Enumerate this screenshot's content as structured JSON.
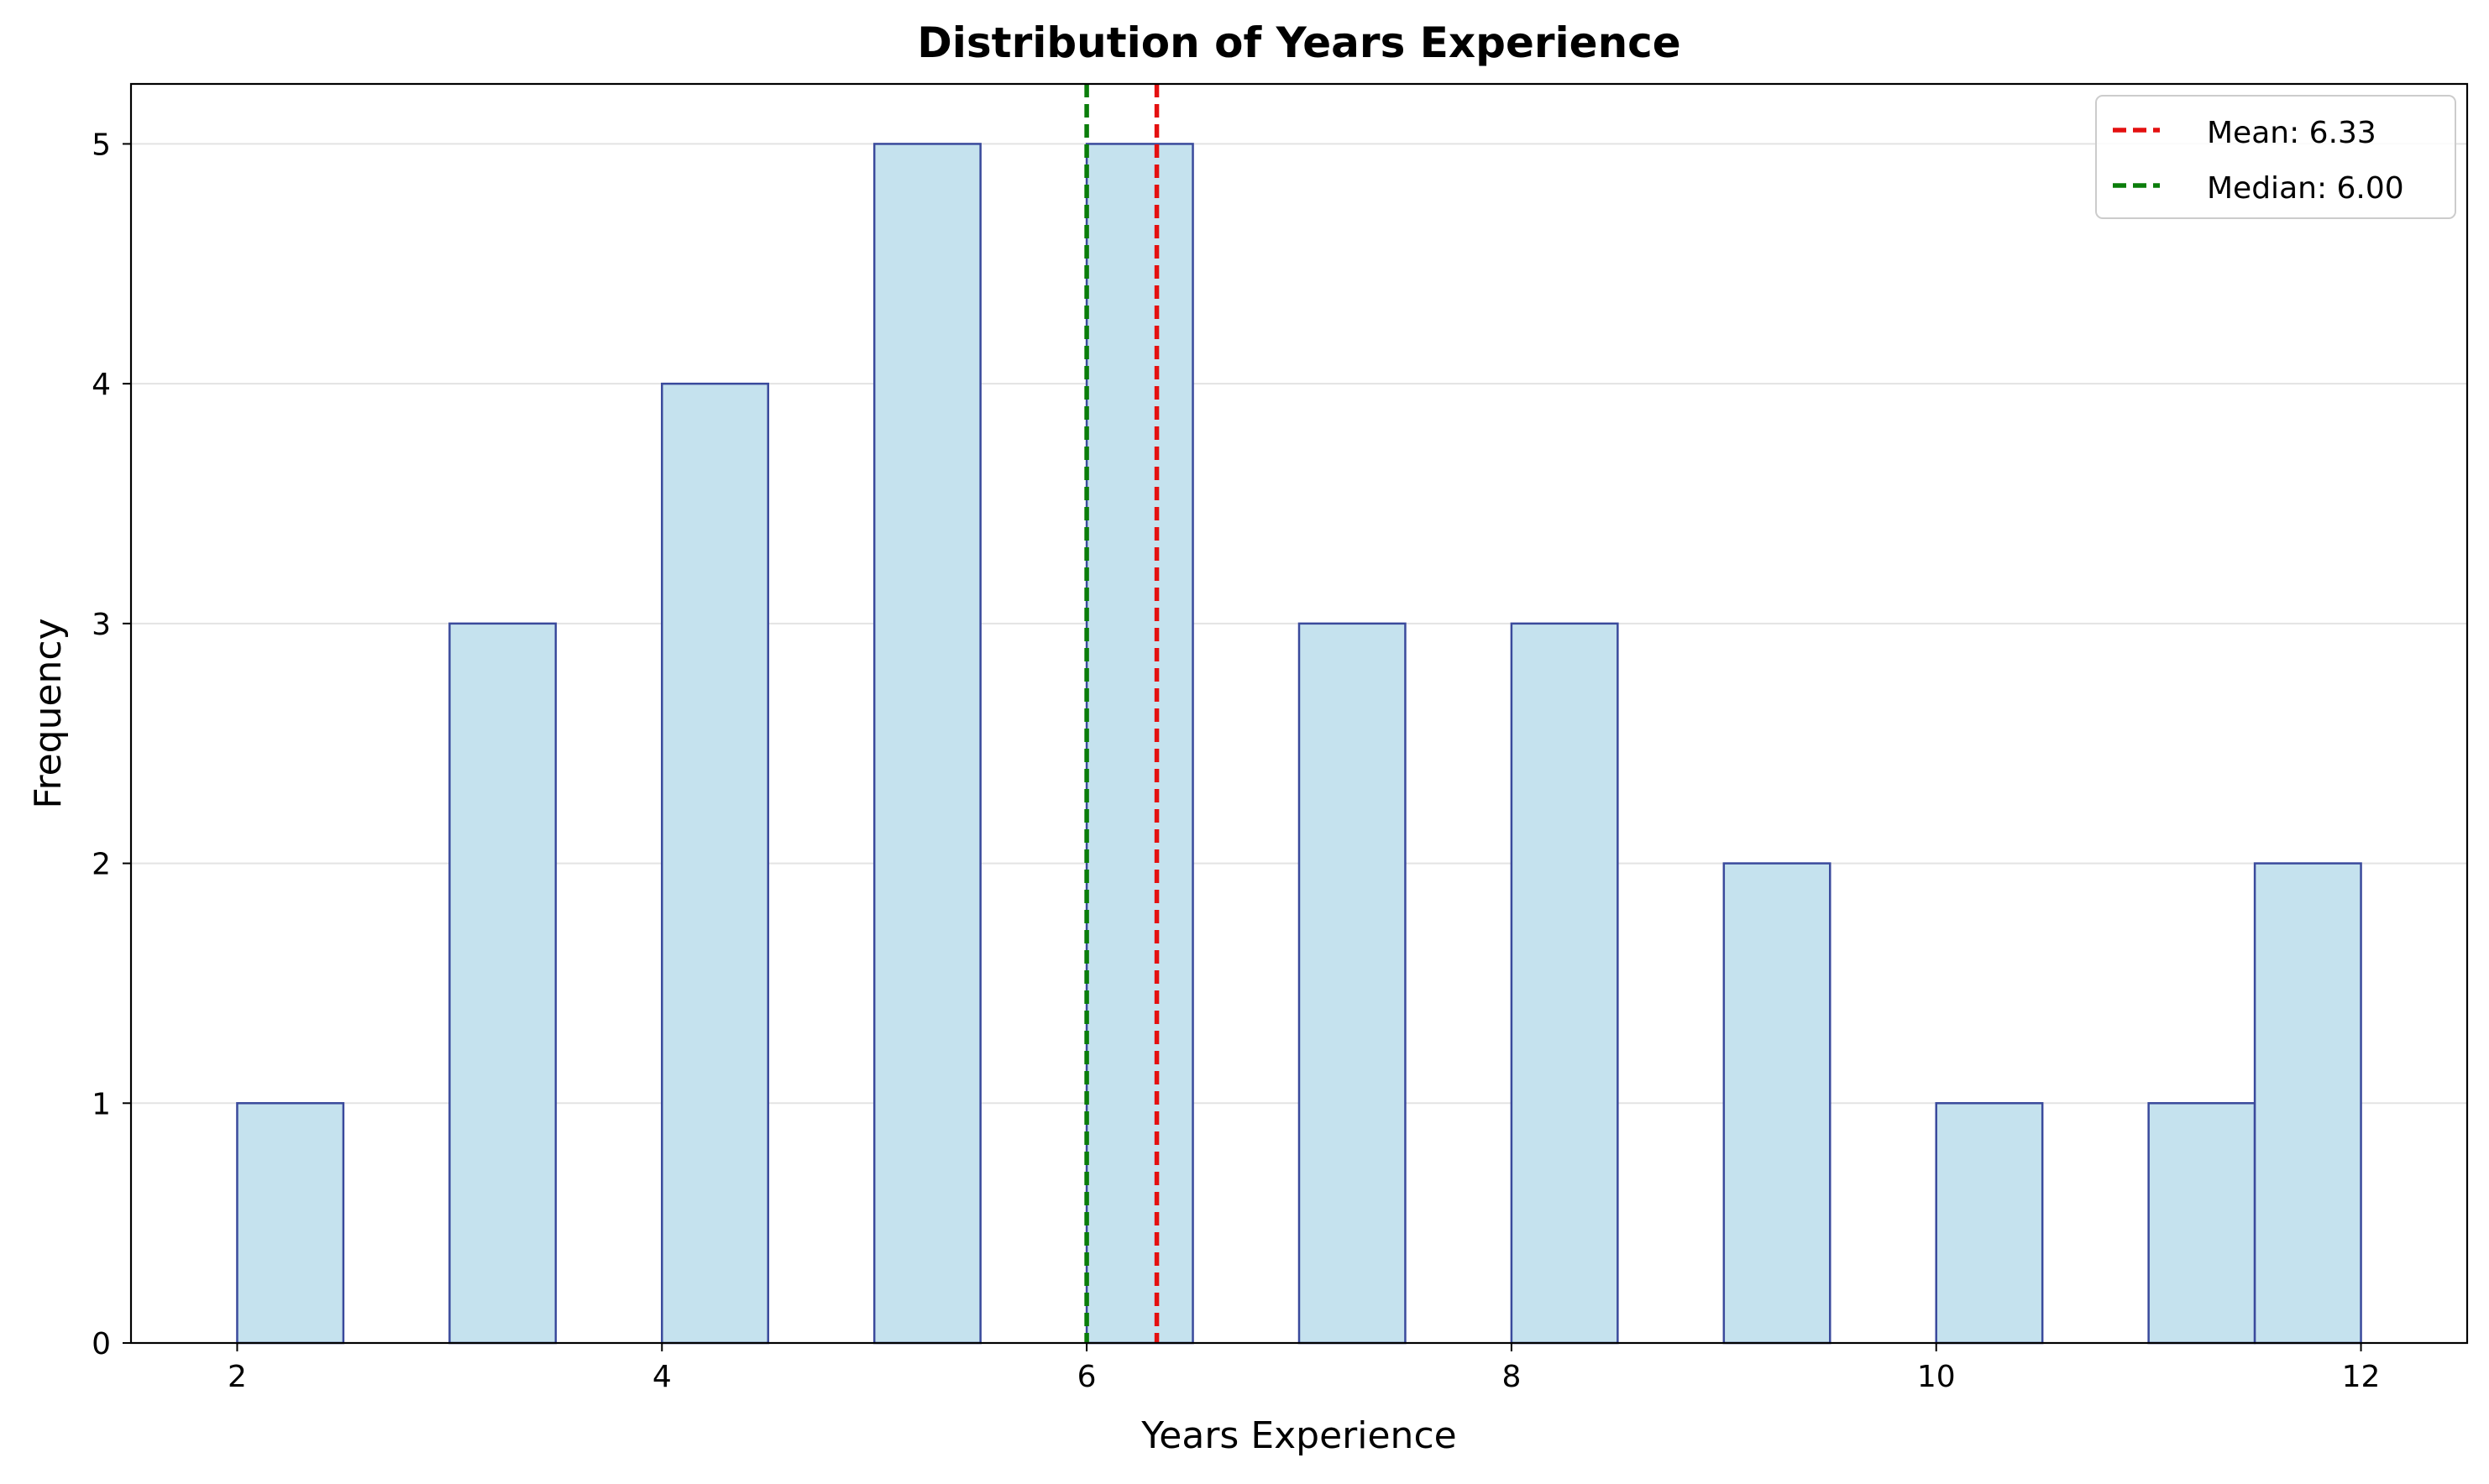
{
  "chart_data": {
    "type": "bar",
    "title": "Distribution of Years Experience",
    "xlabel": "Years Experience",
    "ylabel": "Frequency",
    "xlim": [
      1.5,
      12.5
    ],
    "ylim": [
      0,
      5.25
    ],
    "xticks": [
      2,
      4,
      6,
      8,
      10,
      12
    ],
    "yticks": [
      0,
      1,
      2,
      3,
      4,
      5
    ],
    "grid": "y",
    "legend_position": "top-right",
    "bins": [
      {
        "x0": 2.0,
        "x1": 2.5,
        "count": 1
      },
      {
        "x0": 3.0,
        "x1": 3.5,
        "count": 3
      },
      {
        "x0": 4.0,
        "x1": 4.5,
        "count": 4
      },
      {
        "x0": 5.0,
        "x1": 5.5,
        "count": 5
      },
      {
        "x0": 6.0,
        "x1": 6.5,
        "count": 5
      },
      {
        "x0": 7.0,
        "x1": 7.5,
        "count": 3
      },
      {
        "x0": 8.0,
        "x1": 8.5,
        "count": 3
      },
      {
        "x0": 9.0,
        "x1": 9.5,
        "count": 2
      },
      {
        "x0": 10.0,
        "x1": 10.5,
        "count": 1
      },
      {
        "x0": 11.0,
        "x1": 11.5,
        "count": 1
      },
      {
        "x0": 11.5,
        "x1": 12.0,
        "count": 2
      }
    ],
    "reference_lines": [
      {
        "label": "Mean: 6.33",
        "x": 6.33,
        "color": "#e41010",
        "style": "dashed"
      },
      {
        "label": "Median: 6.00",
        "x": 6.0,
        "color": "#0a7d0a",
        "style": "dashed"
      }
    ],
    "bar_fill": "#c5e2ee",
    "bar_edge": "#3a4a9c"
  }
}
